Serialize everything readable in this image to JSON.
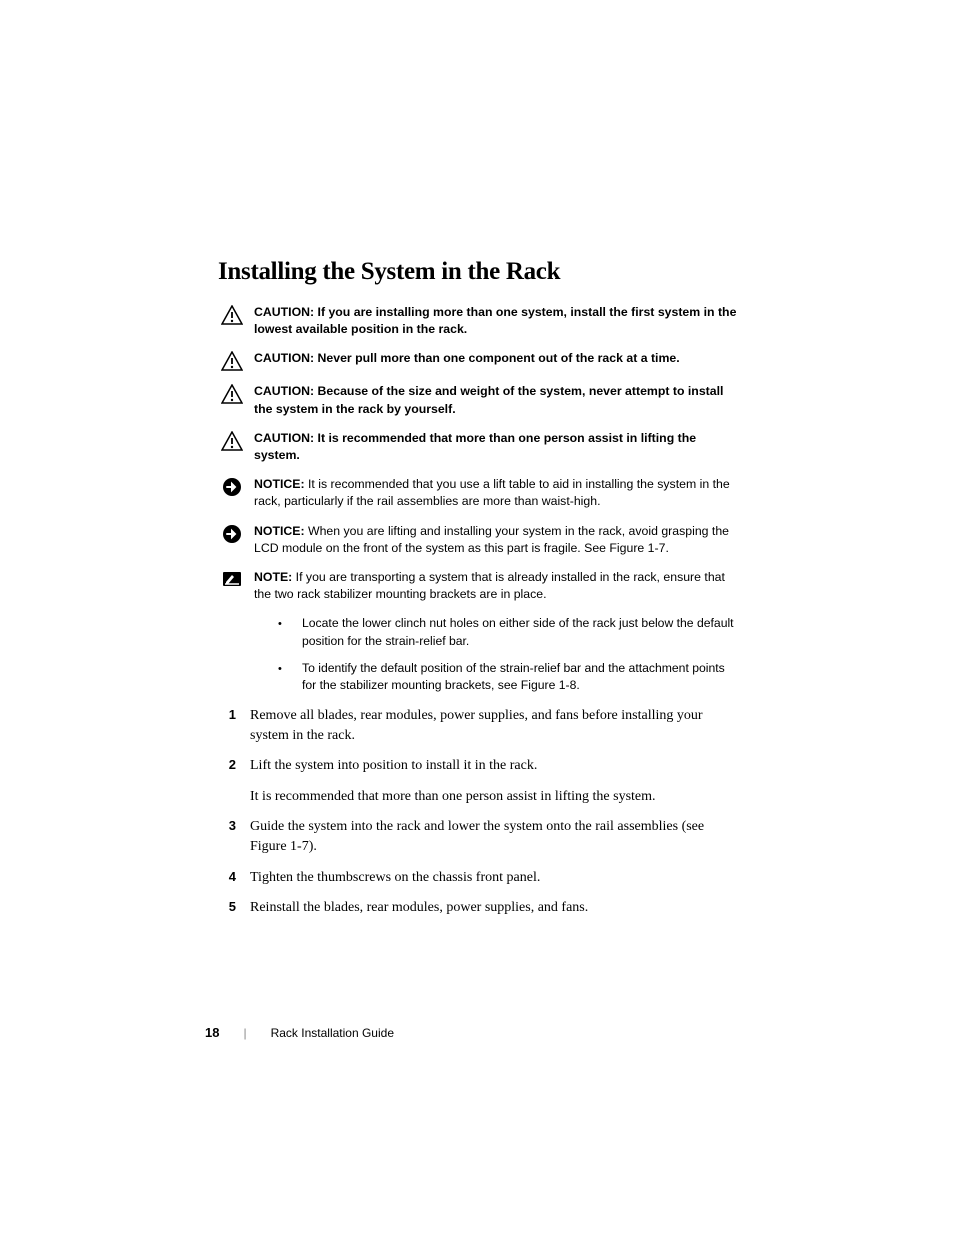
{
  "heading": "Installing the System in the Rack",
  "callouts": [
    {
      "icon": "caution",
      "label": "CAUTION: ",
      "text": "If you are installing more than one system, install the first system in the lowest available position in the rack.",
      "bold": true
    },
    {
      "icon": "caution",
      "label": "CAUTION: ",
      "text": "Never pull more than one component out of the rack at a time.",
      "bold": true
    },
    {
      "icon": "caution",
      "label": "CAUTION: ",
      "text": "Because of the size and weight of the system, never attempt to install the system in the rack by yourself.",
      "bold": true
    },
    {
      "icon": "caution",
      "label": "CAUTION: ",
      "text": "It is recommended that more than one person assist in lifting the system.",
      "bold": true
    },
    {
      "icon": "notice",
      "label": "NOTICE: ",
      "text": "It is recommended that you use a lift table to aid in installing the system in the rack, particularly if the rail assemblies are more than waist-high.",
      "bold": false
    },
    {
      "icon": "notice",
      "label": "NOTICE: ",
      "text": "When you are lifting and installing your system in the rack, avoid grasping the LCD module on the front of the system as this part is fragile. See Figure 1-7.",
      "bold": false
    },
    {
      "icon": "note",
      "label": "NOTE: ",
      "text": "If you are transporting a system that is already installed in the rack, ensure that the two rack stabilizer mounting brackets are in place.",
      "bold": false
    }
  ],
  "subBullets": [
    "Locate the lower clinch nut holes on either side of the rack just below the default position for the strain-relief bar.",
    "To identify the default position of the strain-relief bar and the attachment points for the stabilizer mounting brackets, see Figure 1-8."
  ],
  "steps": [
    {
      "num": "1",
      "text": "Remove all blades, rear modules, power supplies, and fans before installing your system in the rack."
    },
    {
      "num": "2",
      "text": "Lift the system into position to install it in the rack.",
      "subtext": "It is recommended that more than one person assist in lifting the system."
    },
    {
      "num": "3",
      "text": "Guide the system into the rack and lower the system onto the rail assemblies (see Figure 1-7)."
    },
    {
      "num": "4",
      "text": "Tighten the thumbscrews on the chassis front panel."
    },
    {
      "num": "5",
      "text": "Reinstall the blades, rear modules, power supplies, and fans."
    }
  ],
  "footer": {
    "pageNumber": "18",
    "title": "Rack Installation Guide"
  },
  "colors": {
    "text": "#000000",
    "background": "#ffffff"
  }
}
